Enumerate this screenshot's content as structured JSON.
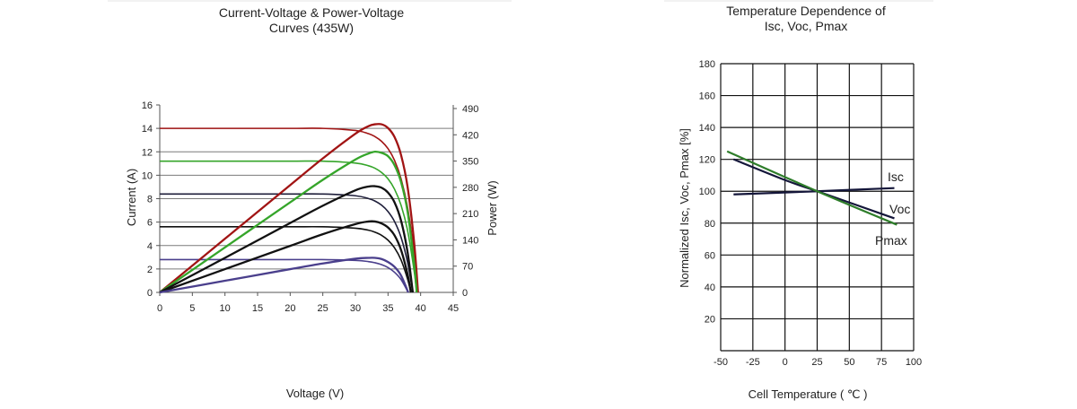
{
  "chart_data": [
    {
      "type": "line",
      "title": [
        "Current-Voltage & Power-Voltage",
        "Curves (435W)"
      ],
      "xlabel": "Voltage (V)",
      "ylabel": "Current (A)",
      "y2label": "Power (W)",
      "xlim": [
        0,
        45
      ],
      "ylim": [
        0,
        16
      ],
      "y2lim": [
        0,
        490
      ],
      "xticks": [
        "0",
        "5",
        "10",
        "15",
        "20",
        "25",
        "30",
        "35",
        "40",
        "45"
      ],
      "yticks": [
        "0",
        "2",
        "4",
        "6",
        "8",
        "10",
        "12",
        "14",
        "16"
      ],
      "y2ticks": [
        "0",
        "70",
        "140",
        "210",
        "280",
        "350",
        "420",
        "490"
      ],
      "grid": true,
      "iv_series": [
        {
          "color": "#a11414",
          "x": [
            0,
            10,
            20,
            25,
            30,
            32,
            33,
            34,
            35,
            36,
            37,
            38,
            39,
            39.6
          ],
          "y": [
            14,
            14,
            14,
            14,
            13.82,
            13.55,
            13.3,
            12.9,
            12.27,
            11.27,
            9.7,
            7.24,
            3.35,
            0
          ]
        },
        {
          "color": "#35a52a",
          "x": [
            0,
            10,
            20,
            25,
            30,
            32,
            33,
            34,
            35,
            36,
            37,
            38,
            39,
            39.4
          ],
          "y": [
            11.2,
            11.2,
            11.2,
            11.2,
            11.04,
            10.81,
            10.6,
            10.24,
            9.69,
            8.81,
            7.44,
            5.28,
            1.86,
            0
          ]
        },
        {
          "color": "#1e1e3a",
          "x": [
            0,
            10,
            20,
            25,
            30,
            32,
            33,
            34,
            35,
            36,
            37,
            38,
            38.8
          ],
          "y": [
            8.4,
            8.4,
            8.4,
            8.4,
            8.25,
            8.01,
            7.8,
            7.45,
            6.9,
            6.05,
            4.7,
            2.56,
            0
          ]
        },
        {
          "color": "#111111",
          "x": [
            0,
            10,
            20,
            25,
            30,
            32,
            33,
            34,
            35,
            36,
            37,
            38,
            38.5
          ],
          "y": [
            5.6,
            5.6,
            5.6,
            5.6,
            5.48,
            5.31,
            5.14,
            4.88,
            4.46,
            3.8,
            2.77,
            1.14,
            0
          ]
        },
        {
          "color": "#4a3f8c",
          "x": [
            0,
            10,
            20,
            25,
            30,
            32,
            33,
            34,
            35,
            36,
            37,
            38.1
          ],
          "y": [
            2.8,
            2.8,
            2.8,
            2.8,
            2.73,
            2.63,
            2.53,
            2.37,
            2.12,
            1.72,
            1.1,
            0
          ]
        }
      ],
      "pv_series": [
        {
          "color": "#a11414",
          "x": [
            0,
            10,
            20,
            25,
            30,
            32,
            33,
            34,
            35,
            36,
            37,
            38,
            39,
            39.6
          ],
          "y": [
            0,
            143,
            286,
            357,
            423,
            443,
            448,
            448,
            438,
            414,
            366,
            281,
            134,
            0
          ]
        },
        {
          "color": "#35a52a",
          "x": [
            0,
            10,
            20,
            25,
            30,
            32,
            33,
            34,
            35,
            36,
            37,
            38,
            39,
            39.4
          ],
          "y": [
            0,
            120,
            240,
            300,
            354,
            370,
            375,
            372,
            363,
            339,
            294,
            215,
            78,
            0
          ]
        },
        {
          "color": "#111111",
          "x": [
            0,
            10,
            20,
            25,
            30,
            32,
            33,
            34,
            35,
            36,
            37,
            38,
            38.8
          ],
          "y": [
            0,
            92,
            185,
            231,
            272,
            282,
            283,
            279,
            266,
            240,
            191,
            107,
            0
          ]
        },
        {
          "color": "#111111",
          "x": [
            0,
            10,
            20,
            25,
            30,
            32,
            33,
            34,
            35,
            36,
            37,
            38,
            38.5
          ],
          "y": [
            0,
            62,
            124,
            155,
            182,
            189,
            189,
            184,
            173,
            152,
            113,
            48,
            0
          ]
        },
        {
          "color": "#4a3f8c",
          "x": [
            0,
            10,
            20,
            25,
            30,
            32,
            33,
            34,
            35,
            36,
            37,
            38.1
          ],
          "y": [
            0,
            31,
            62,
            77,
            90,
            92,
            92,
            89,
            81,
            68,
            45,
            0
          ]
        }
      ]
    },
    {
      "type": "line",
      "title": [
        "Temperature Dependence of",
        "Isc, Voc, Pmax"
      ],
      "xlabel": "Cell Temperature ( ℃ )",
      "ylabel": "Normalized Isc, Voc, Pmax [%]",
      "xlim": [
        -50,
        100
      ],
      "ylim": [
        0,
        180
      ],
      "xticks": [
        "-50",
        "-25",
        "0",
        "25",
        "50",
        "75",
        "100"
      ],
      "yticks": [
        "20",
        "40",
        "60",
        "80",
        "100",
        "120",
        "140",
        "160",
        "180"
      ],
      "grid": true,
      "series": [
        {
          "name": "Isc",
          "color": "#14163a",
          "x": [
            -40,
            25,
            85
          ],
          "y": [
            98,
            100,
            102
          ]
        },
        {
          "name": "Voc",
          "color": "#14163a",
          "x": [
            -40,
            0,
            25,
            85
          ],
          "y": [
            120,
            107,
            100,
            83
          ]
        },
        {
          "name": "Pmax",
          "color": "#2e7d2a",
          "x": [
            -45,
            25,
            87
          ],
          "y": [
            125,
            100,
            79
          ]
        }
      ]
    }
  ]
}
